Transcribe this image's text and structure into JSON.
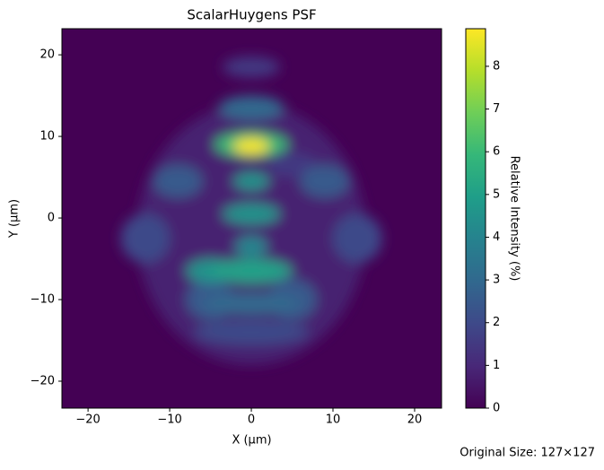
{
  "chart_data": {
    "type": "heatmap",
    "title": "ScalarHuygens PSF",
    "xlabel": "X (μm)",
    "ylabel": "Y (μm)",
    "colorbar_label": "Relative Intensity (%)",
    "footnote": "Original Size: 127×127",
    "colormap": "viridis",
    "x": [
      0,
      0,
      0,
      -9,
      9,
      0,
      -5,
      5,
      -13,
      13,
      0,
      -5,
      5,
      0,
      0,
      0,
      0,
      0,
      0
    ],
    "y": [
      -2,
      18.5,
      13.5,
      4.5,
      4.5,
      -14,
      -10,
      -10,
      -2.5,
      -2.5,
      -10.5,
      -6.5,
      6.5,
      4.5,
      0.5,
      -3.5,
      -6.5,
      9,
      8.8
    ],
    "widths": [
      14,
      3.5,
      4,
      3,
      3,
      7,
      3,
      3,
      3,
      3,
      6,
      3,
      3,
      2.2,
      3.5,
      2,
      5,
      4.5,
      2.2
    ],
    "heights": [
      16,
      1.3,
      1.5,
      2,
      2,
      1.5,
      2.5,
      2.5,
      3,
      3,
      1.3,
      1.5,
      1.5,
      1.1,
      1.3,
      1.3,
      1.5,
      1.5,
      1
    ],
    "values": [
      0.8,
      1.5,
      3,
      2.5,
      2.5,
      2,
      2.5,
      2.5,
      2,
      2,
      3,
      4.5,
      1.5,
      4.5,
      4.5,
      4,
      5,
      6,
      8.8
    ],
    "xlim": [
      -23.2,
      23.3
    ],
    "ylim": [
      -23.3,
      23.2
    ],
    "clim": [
      0,
      8.88
    ],
    "xticks": [
      {
        "value": -20,
        "label": "−20"
      },
      {
        "value": -10,
        "label": "−10"
      },
      0,
      10,
      20
    ],
    "yticks": [
      {
        "value": -20,
        "label": "−20"
      },
      {
        "value": -10,
        "label": "−10"
      },
      0,
      10,
      20
    ],
    "cticks": [
      0,
      1,
      2,
      3,
      4,
      5,
      6,
      7,
      8
    ]
  }
}
